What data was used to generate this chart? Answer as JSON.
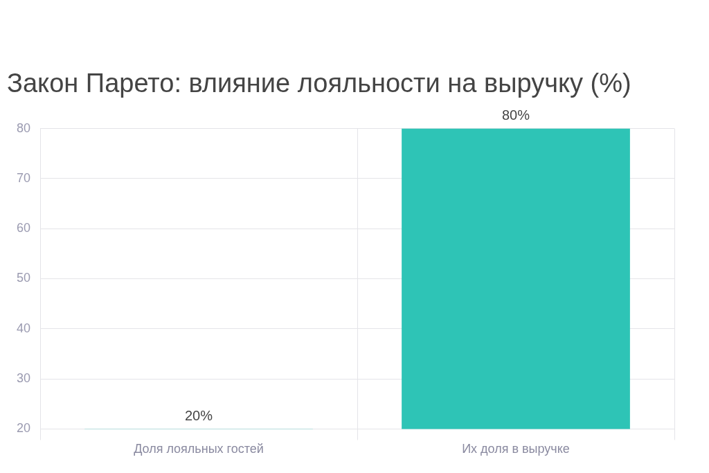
{
  "chart_data": {
    "type": "bar",
    "title": "Закон Парето: влияние лояльности на выручку (%)",
    "categories": [
      "Доля лояльных гостей",
      "Их доля в выручке"
    ],
    "values": [
      20,
      80
    ],
    "color": "#2ec4b6",
    "value_labels": [
      "20%",
      "80%"
    ],
    "ylim": [
      20,
      80
    ],
    "yticks": [
      20,
      30,
      40,
      50,
      60,
      70,
      80
    ],
    "grid": true
  }
}
